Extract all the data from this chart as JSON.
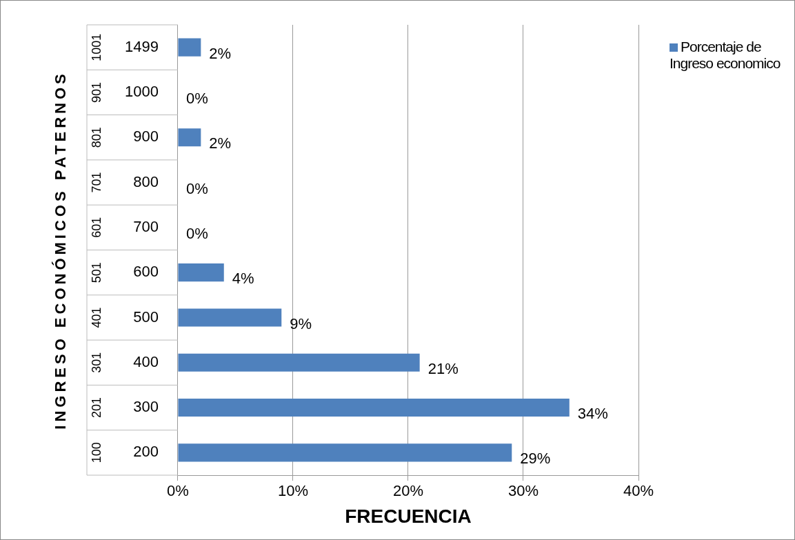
{
  "chart_data": {
    "type": "bar",
    "orientation": "horizontal",
    "xlabel": "FRECUENCIA",
    "ylabel": "INGRESO ECONÓMICOS PATERNOS",
    "categories": [
      "1499",
      "1000",
      "900",
      "800",
      "700",
      "600",
      "500",
      "400",
      "300",
      "200"
    ],
    "annotations": [
      "1001",
      "901",
      "801",
      "701",
      "601",
      "501",
      "401",
      "301",
      "201",
      "100"
    ],
    "series": [
      {
        "name": "Porcentaje de Ingreso economico",
        "color": "#4f81bd",
        "values": [
          2,
          0,
          2,
          0,
          0,
          4,
          9,
          21,
          34,
          29
        ]
      }
    ],
    "value_labels": [
      "2%",
      "0%",
      "2%",
      "0%",
      "0%",
      "4%",
      "9%",
      "21%",
      "34%",
      "29%"
    ],
    "xlim": [
      0,
      40
    ],
    "xticks": [
      {
        "value": 0,
        "label": "0%"
      },
      {
        "value": 10,
        "label": "10%"
      },
      {
        "value": 20,
        "label": "20%"
      },
      {
        "value": 30,
        "label": "30%"
      },
      {
        "value": 40,
        "label": "40%"
      }
    ],
    "grid": true,
    "legend": "right"
  }
}
